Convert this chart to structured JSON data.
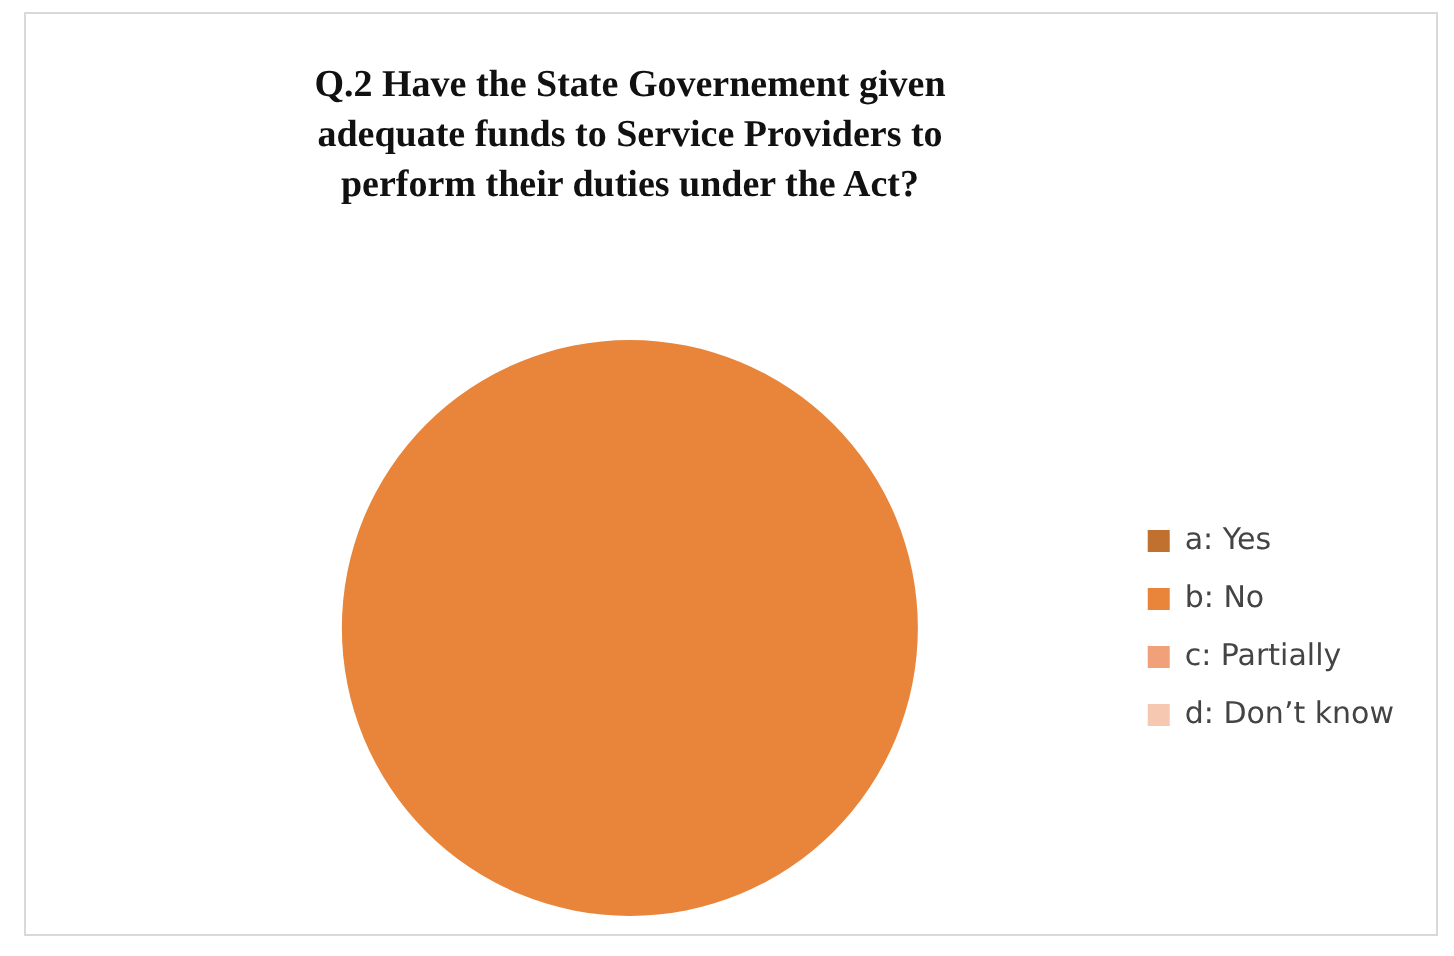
{
  "chart_data": {
    "type": "pie",
    "title": "Q.2 Have the State Governement given adequate funds to Service Providers to perform their duties under the Act?",
    "categories": [
      "a: Yes",
      "b: No",
      "c: Partially",
      "d: Don’t know"
    ],
    "values": [
      0,
      100,
      0,
      0
    ],
    "colors": [
      "#c0712f",
      "#e8853b",
      "#f0a17a",
      "#f6c8b2"
    ],
    "legend": "right"
  }
}
